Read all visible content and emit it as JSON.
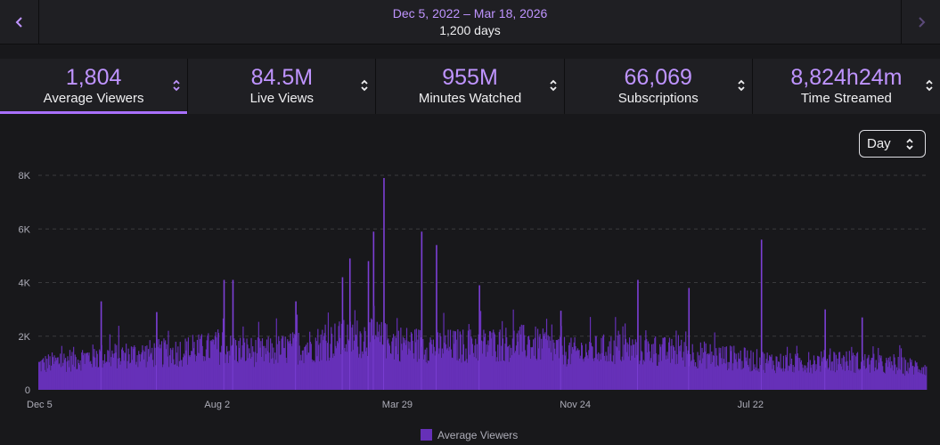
{
  "header": {
    "date_range": "Dec 5, 2022 – Mar 18, 2026",
    "days": "1,200 days",
    "prev_icon": "chevron-left-icon",
    "next_icon": "chevron-right-icon"
  },
  "stats": [
    {
      "value": "1,804",
      "label": "Average Viewers",
      "active": true
    },
    {
      "value": "84.5M",
      "label": "Live Views",
      "active": false
    },
    {
      "value": "955M",
      "label": "Minutes Watched",
      "active": false
    },
    {
      "value": "66,069",
      "label": "Subscriptions",
      "active": false
    },
    {
      "value": "8,824h24m",
      "label": "Time Streamed",
      "active": false
    }
  ],
  "granularity": {
    "selected": "Day"
  },
  "colors": {
    "accent": "#bf94ff",
    "bar": "#6630b8",
    "spike": "#7c3fd6",
    "underline": "#a970ff",
    "grid": "#3a3a3d"
  },
  "chart_data": {
    "type": "bar",
    "title": "",
    "xlabel": "",
    "ylabel": "",
    "ylim": [
      0,
      8000
    ],
    "y_ticks": [
      {
        "value": 0,
        "label": "0"
      },
      {
        "value": 2000,
        "label": "2K"
      },
      {
        "value": 4000,
        "label": "4K"
      },
      {
        "value": 6000,
        "label": "6K"
      },
      {
        "value": 8000,
        "label": "8K"
      }
    ],
    "x_tick_labels": [
      {
        "day_index": 0,
        "label": "Dec 5"
      },
      {
        "day_index": 240,
        "label": "Aug 2"
      },
      {
        "day_index": 480,
        "label": "Mar 29"
      },
      {
        "day_index": 720,
        "label": "Nov 24"
      },
      {
        "day_index": 960,
        "label": "Jul 22"
      }
    ],
    "legend": [
      "Average Viewers"
    ],
    "legend_position": "bottom-center",
    "series": [
      {
        "name": "Average Viewers",
        "approx_daily_baseline": [
          {
            "day_index": 0,
            "value": 1000
          },
          {
            "day_index": 60,
            "value": 1300
          },
          {
            "day_index": 120,
            "value": 1400
          },
          {
            "day_index": 180,
            "value": 1500
          },
          {
            "day_index": 240,
            "value": 1700
          },
          {
            "day_index": 300,
            "value": 1500
          },
          {
            "day_index": 360,
            "value": 1750
          },
          {
            "day_index": 400,
            "value": 2000
          },
          {
            "day_index": 440,
            "value": 2100
          },
          {
            "day_index": 480,
            "value": 1900
          },
          {
            "day_index": 540,
            "value": 1750
          },
          {
            "day_index": 600,
            "value": 1800
          },
          {
            "day_index": 660,
            "value": 1900
          },
          {
            "day_index": 720,
            "value": 1500
          },
          {
            "day_index": 780,
            "value": 1650
          },
          {
            "day_index": 840,
            "value": 1550
          },
          {
            "day_index": 900,
            "value": 1400
          },
          {
            "day_index": 960,
            "value": 1200
          },
          {
            "day_index": 1020,
            "value": 1050
          },
          {
            "day_index": 1080,
            "value": 1200
          },
          {
            "day_index": 1140,
            "value": 1000
          },
          {
            "day_index": 1199,
            "value": 900
          }
        ],
        "notable_peaks": [
          {
            "day_index": 84,
            "value": 3300
          },
          {
            "day_index": 159,
            "value": 2900
          },
          {
            "day_index": 250,
            "value": 4100
          },
          {
            "day_index": 262,
            "value": 4100
          },
          {
            "day_index": 347,
            "value": 3300
          },
          {
            "day_index": 410,
            "value": 4200
          },
          {
            "day_index": 420,
            "value": 4900
          },
          {
            "day_index": 445,
            "value": 4800
          },
          {
            "day_index": 452,
            "value": 5900
          },
          {
            "day_index": 466,
            "value": 7900
          },
          {
            "day_index": 517,
            "value": 5900
          },
          {
            "day_index": 537,
            "value": 5400
          },
          {
            "day_index": 595,
            "value": 3900
          },
          {
            "day_index": 705,
            "value": 2950
          },
          {
            "day_index": 809,
            "value": 4100
          },
          {
            "day_index": 878,
            "value": 3800
          },
          {
            "day_index": 976,
            "value": 5600
          },
          {
            "day_index": 1062,
            "value": 3000
          },
          {
            "day_index": 1112,
            "value": 2700
          }
        ]
      }
    ]
  }
}
